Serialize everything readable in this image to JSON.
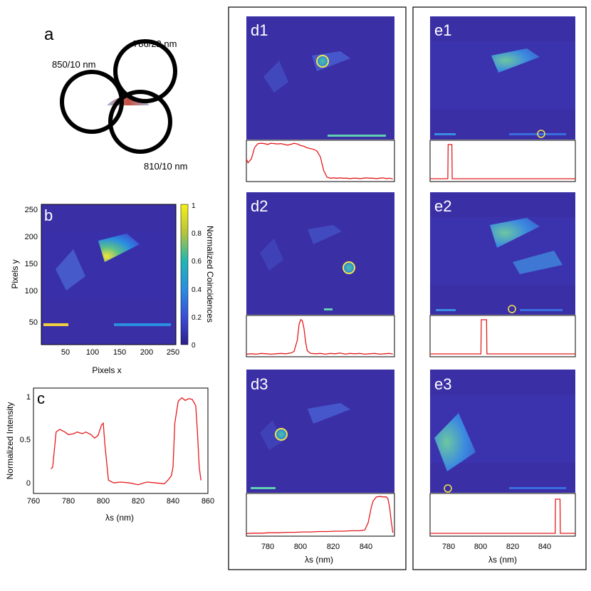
{
  "colors": {
    "heat_bg": "#3b2fa6",
    "curve": "#e41a1c",
    "marker": "#f2e74b",
    "frame": "#000000"
  },
  "panels": {
    "a": {
      "letter": "a",
      "filters": [
        {
          "label": "850/10 nm"
        },
        {
          "label": "786/22 nm"
        },
        {
          "label": "810/10 nm"
        }
      ]
    },
    "b": {
      "letter": "b",
      "xlabel": "Pixels x",
      "ylabel": "Pixels y",
      "xticks": [
        "50",
        "100",
        "150",
        "200",
        "250"
      ],
      "yticks": [
        "250",
        "200",
        "150",
        "100",
        "50"
      ],
      "colorbar_label": "Normalized Coincidences",
      "colorbar_ticks": [
        "1",
        "0.8",
        "0.6",
        "0.4",
        "0.2",
        "0"
      ]
    },
    "c": {
      "letter": "c",
      "xlabel": "λs (nm)",
      "ylabel": "Normalized Intensity",
      "xticks": [
        "760",
        "780",
        "800",
        "820",
        "840",
        "860"
      ],
      "yticks": [
        "1",
        "0.5",
        "0"
      ]
    },
    "d": {
      "xlabel": "λs (nm)",
      "xticks": [
        "780",
        "800",
        "820",
        "840"
      ],
      "subpanels": [
        {
          "letter": "d1"
        },
        {
          "letter": "d2"
        },
        {
          "letter": "d3"
        }
      ]
    },
    "e": {
      "xlabel": "λs (nm)",
      "xticks": [
        "780",
        "800",
        "820",
        "840"
      ],
      "subpanels": [
        {
          "letter": "e1"
        },
        {
          "letter": "e2"
        },
        {
          "letter": "e3"
        }
      ]
    }
  },
  "chart_data": [
    {
      "id": "c",
      "type": "line",
      "xlabel": "λs (nm)",
      "ylabel": "Normalized Intensity",
      "xlim": [
        760,
        860
      ],
      "ylim": [
        -0.1,
        1.1
      ],
      "x": [
        770,
        771,
        773,
        775,
        778,
        780,
        783,
        785,
        788,
        790,
        793,
        795,
        797,
        799,
        800,
        801,
        803,
        806,
        810,
        815,
        820,
        825,
        830,
        835,
        837,
        839,
        840,
        841,
        843,
        845,
        847,
        849,
        851,
        853,
        854,
        855,
        856
      ],
      "y": [
        0.18,
        0.2,
        0.6,
        0.63,
        0.6,
        0.57,
        0.58,
        0.6,
        0.58,
        0.6,
        0.57,
        0.53,
        0.56,
        0.68,
        0.7,
        0.45,
        0.05,
        0.02,
        0.03,
        0.02,
        0.0,
        0.03,
        0.02,
        0.01,
        0.05,
        0.1,
        0.2,
        0.7,
        0.95,
        0.99,
        0.96,
        0.98,
        0.97,
        0.9,
        0.6,
        0.2,
        0.05
      ]
    },
    {
      "id": "d1",
      "type": "line",
      "xlim": [
        766,
        856
      ],
      "x": [
        766,
        767,
        769,
        771,
        773,
        775,
        777,
        779,
        781,
        783,
        785,
        787,
        789,
        791,
        793,
        795,
        797,
        799,
        801,
        803,
        805,
        807,
        809,
        811,
        813,
        815,
        817,
        819,
        821,
        823,
        825,
        827,
        829,
        831,
        833,
        835,
        837,
        839,
        841,
        843,
        845,
        847,
        849,
        851,
        853,
        855
      ],
      "y": [
        0.55,
        0.45,
        0.55,
        0.85,
        0.95,
        0.96,
        0.95,
        0.93,
        0.96,
        0.95,
        0.94,
        0.95,
        0.93,
        0.91,
        0.93,
        0.96,
        0.94,
        0.9,
        0.88,
        0.84,
        0.82,
        0.8,
        0.75,
        0.6,
        0.25,
        0.08,
        0.05,
        0.06,
        0.05,
        0.06,
        0.05,
        0.05,
        0.04,
        0.05,
        0.05,
        0.04,
        0.05,
        0.06,
        0.05,
        0.05,
        0.04,
        0.05,
        0.06,
        0.04,
        0.05,
        0.03
      ]
    },
    {
      "id": "d2",
      "type": "line",
      "xlim": [
        766,
        856
      ],
      "x": [
        766,
        769,
        772,
        775,
        778,
        781,
        784,
        787,
        790,
        793,
        795,
        797,
        798,
        799,
        800,
        801,
        802,
        803,
        805,
        808,
        811,
        814,
        817,
        820,
        823,
        826,
        829,
        832,
        835,
        838,
        841,
        844,
        847,
        850,
        853,
        855
      ],
      "y": [
        0.03,
        0.04,
        0.03,
        0.05,
        0.04,
        0.03,
        0.04,
        0.05,
        0.04,
        0.06,
        0.1,
        0.4,
        0.8,
        0.93,
        0.9,
        0.7,
        0.35,
        0.12,
        0.05,
        0.04,
        0.05,
        0.03,
        0.05,
        0.04,
        0.06,
        0.03,
        0.05,
        0.04,
        0.05,
        0.03,
        0.04,
        0.05,
        0.03,
        0.04,
        0.05,
        0.03
      ]
    },
    {
      "id": "d3",
      "type": "line",
      "xlim": [
        766,
        856
      ],
      "x": [
        766,
        770,
        775,
        780,
        785,
        790,
        795,
        800,
        805,
        810,
        815,
        820,
        825,
        830,
        835,
        838,
        840,
        842,
        843,
        845,
        847,
        849,
        851,
        852,
        853,
        854,
        855
      ],
      "y": [
        0.03,
        0.04,
        0.04,
        0.05,
        0.05,
        0.06,
        0.06,
        0.07,
        0.07,
        0.08,
        0.08,
        0.09,
        0.09,
        0.1,
        0.1,
        0.12,
        0.3,
        0.7,
        0.85,
        0.95,
        0.96,
        0.95,
        0.95,
        0.9,
        0.7,
        0.35,
        0.05
      ]
    },
    {
      "id": "e1",
      "type": "line",
      "xlim": [
        766,
        856
      ],
      "x": [
        766,
        777,
        777.2,
        779.5,
        779.7,
        856
      ],
      "y": [
        0.0,
        0.0,
        1.0,
        1.0,
        0.0,
        0.0
      ]
    },
    {
      "id": "e2",
      "type": "line",
      "xlim": [
        766,
        856
      ],
      "x": [
        766,
        797.5,
        797.7,
        801,
        801.2,
        856
      ],
      "y": [
        0.0,
        0.0,
        1.0,
        1.0,
        0.0,
        0.0
      ]
    },
    {
      "id": "e3",
      "type": "line",
      "xlim": [
        766,
        856
      ],
      "x": [
        766,
        843.5,
        843.7,
        846.5,
        846.7,
        856
      ],
      "y": [
        0.0,
        0.0,
        1.0,
        1.0,
        0.0,
        0.0
      ]
    }
  ]
}
